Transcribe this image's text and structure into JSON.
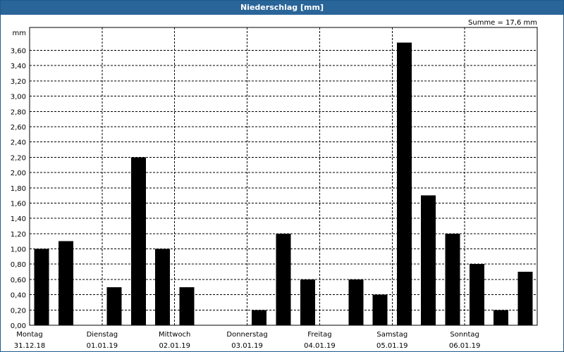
{
  "window": {
    "title": "Niederschlag [mm]"
  },
  "summary": "Summe = 17,6 mm",
  "chart_data": {
    "type": "bar",
    "title": "Niederschlag [mm]",
    "ylabel": "mm",
    "ylim": [
      0,
      3.9
    ],
    "y_ticks": [
      "0,00",
      "0,20",
      "0,40",
      "0,60",
      "0,80",
      "1,00",
      "1,20",
      "1,40",
      "1,60",
      "1,80",
      "2,00",
      "2,20",
      "2,40",
      "2,60",
      "2,80",
      "3,00",
      "3,20",
      "3,40",
      "3,60"
    ],
    "days": [
      {
        "name": "Montag",
        "date": "31.12.18"
      },
      {
        "name": "Dienstag",
        "date": "01.01.19"
      },
      {
        "name": "Mittwoch",
        "date": "02.01.19"
      },
      {
        "name": "Donnerstag",
        "date": "03.01.19"
      },
      {
        "name": "Freitag",
        "date": "04.01.19"
      },
      {
        "name": "Samstag",
        "date": "05.01.19"
      },
      {
        "name": "Sonntag",
        "date": "06.01.19"
      }
    ],
    "values": [
      1.0,
      1.1,
      0.0,
      0.5,
      2.2,
      1.0,
      0.5,
      0.0,
      0.0,
      0.2,
      1.2,
      0.6,
      0.0,
      0.6,
      0.4,
      3.7,
      1.7,
      1.2,
      0.8,
      0.2,
      0.7
    ],
    "grid": true,
    "bar_color": "#000000",
    "grid_color": "#000000"
  }
}
